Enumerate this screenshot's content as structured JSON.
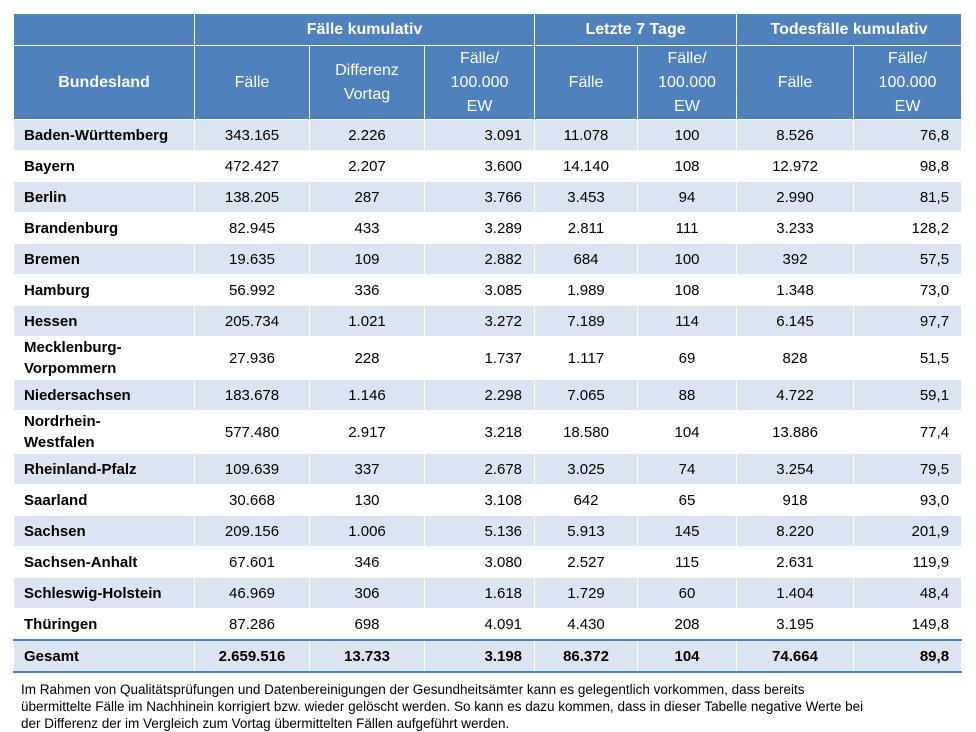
{
  "header": {
    "group_faelle": "Fälle kumulativ",
    "group_7tage": "Letzte 7 Tage",
    "group_tod": "Todesfälle kumulativ",
    "bundesland": "Bundesland",
    "faelle": "Fälle",
    "diff_l1": "Differenz",
    "diff_l2": "Vortag",
    "per_l1": "Fälle/",
    "per_l2": "100.000",
    "per_l3": "EW"
  },
  "rows": [
    {
      "land": [
        "Baden-Württemberg"
      ],
      "faelle": "343.165",
      "diff": "2.226",
      "faelle_per": "3.091",
      "f7": "11.078",
      "f7_per": "100",
      "tod": "8.526",
      "tod_per": "76,8"
    },
    {
      "land": [
        "Bayern"
      ],
      "faelle": "472.427",
      "diff": "2.207",
      "faelle_per": "3.600",
      "f7": "14.140",
      "f7_per": "108",
      "tod": "12.972",
      "tod_per": "98,8"
    },
    {
      "land": [
        "Berlin"
      ],
      "faelle": "138.205",
      "diff": "287",
      "faelle_per": "3.766",
      "f7": "3.453",
      "f7_per": "94",
      "tod": "2.990",
      "tod_per": "81,5"
    },
    {
      "land": [
        "Brandenburg"
      ],
      "faelle": "82.945",
      "diff": "433",
      "faelle_per": "3.289",
      "f7": "2.811",
      "f7_per": "111",
      "tod": "3.233",
      "tod_per": "128,2"
    },
    {
      "land": [
        "Bremen"
      ],
      "faelle": "19.635",
      "diff": "109",
      "faelle_per": "2.882",
      "f7": "684",
      "f7_per": "100",
      "tod": "392",
      "tod_per": "57,5"
    },
    {
      "land": [
        "Hamburg"
      ],
      "faelle": "56.992",
      "diff": "336",
      "faelle_per": "3.085",
      "f7": "1.989",
      "f7_per": "108",
      "tod": "1.348",
      "tod_per": "73,0"
    },
    {
      "land": [
        "Hessen"
      ],
      "faelle": "205.734",
      "diff": "1.021",
      "faelle_per": "3.272",
      "f7": "7.189",
      "f7_per": "114",
      "tod": "6.145",
      "tod_per": "97,7"
    },
    {
      "land": [
        "Mecklenburg-",
        "Vorpommern"
      ],
      "faelle": "27.936",
      "diff": "228",
      "faelle_per": "1.737",
      "f7": "1.117",
      "f7_per": "69",
      "tod": "828",
      "tod_per": "51,5"
    },
    {
      "land": [
        "Niedersachsen"
      ],
      "faelle": "183.678",
      "diff": "1.146",
      "faelle_per": "2.298",
      "f7": "7.065",
      "f7_per": "88",
      "tod": "4.722",
      "tod_per": "59,1"
    },
    {
      "land": [
        "Nordrhein-",
        "Westfalen"
      ],
      "faelle": "577.480",
      "diff": "2.917",
      "faelle_per": "3.218",
      "f7": "18.580",
      "f7_per": "104",
      "tod": "13.886",
      "tod_per": "77,4"
    },
    {
      "land": [
        "Rheinland-Pfalz"
      ],
      "faelle": "109.639",
      "diff": "337",
      "faelle_per": "2.678",
      "f7": "3.025",
      "f7_per": "74",
      "tod": "3.254",
      "tod_per": "79,5"
    },
    {
      "land": [
        "Saarland"
      ],
      "faelle": "30.668",
      "diff": "130",
      "faelle_per": "3.108",
      "f7": "642",
      "f7_per": "65",
      "tod": "918",
      "tod_per": "93,0"
    },
    {
      "land": [
        "Sachsen"
      ],
      "faelle": "209.156",
      "diff": "1.006",
      "faelle_per": "5.136",
      "f7": "5.913",
      "f7_per": "145",
      "tod": "8.220",
      "tod_per": "201,9"
    },
    {
      "land": [
        "Sachsen-Anhalt"
      ],
      "faelle": "67.601",
      "diff": "346",
      "faelle_per": "3.080",
      "f7": "2.527",
      "f7_per": "115",
      "tod": "2.631",
      "tod_per": "119,9"
    },
    {
      "land": [
        "Schleswig-Holstein"
      ],
      "faelle": "46.969",
      "diff": "306",
      "faelle_per": "1.618",
      "f7": "1.729",
      "f7_per": "60",
      "tod": "1.404",
      "tod_per": "48,4"
    },
    {
      "land": [
        "Thüringen"
      ],
      "faelle": "87.286",
      "diff": "698",
      "faelle_per": "4.091",
      "f7": "4.430",
      "f7_per": "208",
      "tod": "3.195",
      "tod_per": "149,8"
    }
  ],
  "total": {
    "land": "Gesamt",
    "faelle": "2.659.516",
    "diff": "13.733",
    "faelle_per": "3.198",
    "f7": "86.372",
    "f7_per": "104",
    "tod": "74.664",
    "tod_per": "89,8"
  },
  "footnote": [
    "Im Rahmen von Qualitätsprüfungen und Datenbereinigungen der Gesundheitsämter kann es gelegentlich vorkommen, dass bereits",
    "übermittelte Fälle im Nachhinein korrigiert bzw. wieder gelöscht werden. So kann es dazu kommen, dass in dieser Tabelle negative Werte bei",
    "der Differenz der im Vergleich zum Vortag übermittelten Fällen aufgeführt werden."
  ]
}
